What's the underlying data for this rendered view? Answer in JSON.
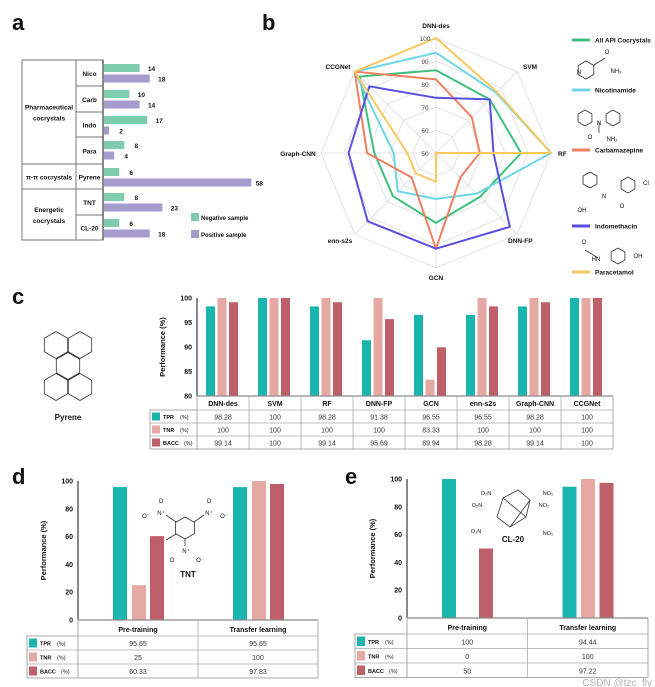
{
  "panel_labels": [
    "a",
    "b",
    "c",
    "d",
    "e"
  ],
  "colors": {
    "negative": "#7dcdae",
    "positive": "#a59bcd",
    "tpr": "#1bb5b0",
    "tnr": "#e6a8a2",
    "bacc": "#bf5f69"
  },
  "chart_data": [
    {
      "type": "bar",
      "orientation": "horizontal",
      "groups": [
        {
          "label_lines": [
            "Pharmaceutical",
            "cocrystals"
          ],
          "size": 4
        },
        {
          "label_lines": [
            "π-π cocrystals"
          ],
          "size": 1
        },
        {
          "label_lines": [
            "Energetic",
            "cocrystals"
          ],
          "size": 2
        }
      ],
      "categories": [
        "Nico",
        "Carb",
        "Indo",
        "Para",
        "Pyrene",
        "TNT",
        "CL-20"
      ],
      "series": [
        {
          "name": "Negative sample",
          "color": "#7dcdae",
          "values": [
            14,
            10,
            17,
            8,
            6,
            8,
            6
          ]
        },
        {
          "name": "Positive sample",
          "color": "#a59bcd",
          "values": [
            18,
            14,
            2,
            4,
            58,
            23,
            18
          ]
        }
      ],
      "legend": "bottom-right"
    },
    {
      "type": "radar",
      "axes": [
        "DNN-des",
        "SVM",
        "RF",
        "DNN-FP",
        "GCN",
        "enn-s2s",
        "Graph-CNN",
        "CCGNet"
      ],
      "rlim": [
        50,
        100
      ],
      "ticks": [
        50,
        60,
        70,
        80,
        90,
        100
      ],
      "legend": "right",
      "series": [
        {
          "name": "All API Cocrystals",
          "color": "#3cc080",
          "values": [
            86,
            83,
            87,
            77,
            80.4,
            76.5,
            76.8,
            97
          ]
        },
        {
          "name": "Nicotinamide",
          "color": "#6fd6e8",
          "values": [
            93.6,
            87,
            100,
            75,
            70,
            73.5,
            68.4,
            100
          ]
        },
        {
          "name": "Carbamazepine",
          "color": "#f08060",
          "values": [
            82,
            72,
            69,
            65,
            91.6,
            65,
            80,
            100
          ]
        },
        {
          "name": "Indomethacin",
          "color": "#5b4fe0",
          "values": [
            74,
            83,
            75,
            95.4,
            91.6,
            92,
            88,
            91
          ]
        },
        {
          "name": "Paracetamol",
          "color": "#f9c860",
          "values": [
            100,
            87.5,
            100,
            50,
            62.5,
            62.5,
            62.5,
            100
          ]
        }
      ]
    },
    {
      "type": "bar",
      "categories": [
        "DNN-des",
        "SVM",
        "RF",
        "DNN-FP",
        "GCN",
        "enn-s2s",
        "Graph-CNN",
        "CCGNet"
      ],
      "ylabel": "Performance (%)",
      "ylim": [
        80,
        100
      ],
      "yticks": [
        80,
        85,
        90,
        95,
        100
      ],
      "series": [
        {
          "name": "TPR",
          "unit": "(%)",
          "color": "#1bb5b0",
          "values": [
            98.28,
            100,
            98.28,
            91.38,
            96.55,
            96.55,
            98.28,
            100
          ]
        },
        {
          "name": "TNR",
          "unit": "(%)",
          "color": "#e6a8a2",
          "values": [
            100,
            100,
            100,
            100,
            83.33,
            100,
            100,
            100
          ]
        },
        {
          "name": "BACC",
          "unit": "(%)",
          "color": "#bf5f69",
          "values": [
            99.14,
            100,
            99.14,
            95.69,
            89.94,
            98.28,
            99.14,
            100
          ]
        }
      ]
    },
    {
      "type": "bar",
      "categories": [
        "Pre-training",
        "Transfer learning"
      ],
      "ylabel": "Performance (%)",
      "ylim": [
        0,
        100
      ],
      "yticks": [
        0,
        20,
        40,
        60,
        80,
        100
      ],
      "series": [
        {
          "name": "TPR",
          "unit": "(%)",
          "color": "#1bb5b0",
          "values": [
            95.65,
            95.65
          ]
        },
        {
          "name": "TNR",
          "unit": "(%)",
          "color": "#e6a8a2",
          "values": [
            25,
            100
          ]
        },
        {
          "name": "BACC",
          "unit": "(%)",
          "color": "#bf5f69",
          "values": [
            60.33,
            97.83
          ]
        }
      ]
    },
    {
      "type": "bar",
      "categories": [
        "Pre-training",
        "Transfer learning"
      ],
      "ylabel": "Performance (%)",
      "ylim": [
        0,
        100
      ],
      "yticks": [
        0,
        20,
        40,
        60,
        80,
        100
      ],
      "series": [
        {
          "name": "TPR",
          "unit": "(%)",
          "color": "#1bb5b0",
          "values": [
            100,
            94.44
          ]
        },
        {
          "name": "TNR",
          "unit": "(%)",
          "color": "#e6a8a2",
          "values": [
            0,
            100
          ]
        },
        {
          "name": "BACC",
          "unit": "(%)",
          "color": "#bf5f69",
          "values": [
            50,
            97.22
          ]
        }
      ]
    }
  ],
  "molecules": {
    "pyrene": "Pyrene",
    "tnt": "TNT",
    "cl20": "CL-20",
    "atoms": {
      "nh2": "NH₂",
      "n": "N",
      "o": "O",
      "oh": "OH",
      "cl": "Cl",
      "hn": "HN",
      "nitro_o": "O",
      "nitro_n": "N⁺",
      "nitro_om": "O⁻",
      "no2": "NO₂",
      "o2n": "O₂N"
    }
  },
  "watermark": "CSDN @tzc_fly"
}
